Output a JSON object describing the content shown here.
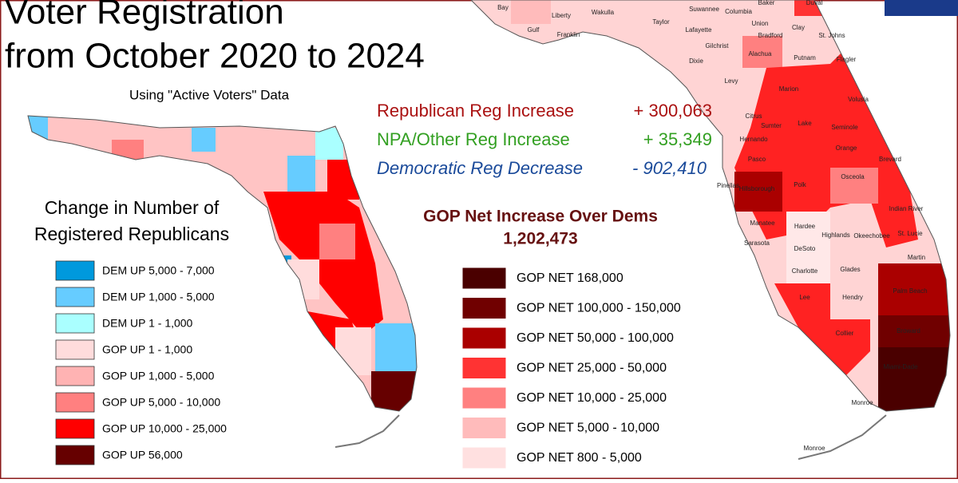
{
  "title_lines": [
    "Voter Registration",
    "from October 2020 to 2024"
  ],
  "subtitle": "Using \"Active Voters\" Data",
  "summary": [
    {
      "label": "Republican Reg Increase",
      "value": "+ 300,063",
      "color": "#aa1111"
    },
    {
      "label": "NPA/Other Reg Increase",
      "value": "+   35,349",
      "color": "#33a022"
    },
    {
      "label": "Democratic Reg Decrease",
      "value": "- 902,410",
      "color": "#1a4a9a"
    }
  ],
  "net": {
    "title": "GOP Net Increase Over Dems",
    "value": "1,202,473"
  },
  "left_legend": {
    "title_lines": [
      "Change in Number of",
      "Registered Republicans"
    ],
    "items": [
      {
        "label": "DEM UP 5,000 - 7,000",
        "color": "#0099dd"
      },
      {
        "label": "DEM UP 1,000 - 5,000",
        "color": "#66ccff"
      },
      {
        "label": "DEM UP 1 - 1,000",
        "color": "#aaffff"
      },
      {
        "label": "GOP UP 1 - 1,000",
        "color": "#ffdcdc"
      },
      {
        "label": "GOP UP 1,000 - 5,000",
        "color": "#ffb3b3"
      },
      {
        "label": "GOP UP 5,000 - 10,000",
        "color": "#ff8080"
      },
      {
        "label": "GOP UP 10,000 - 25,000",
        "color": "#ff0000"
      },
      {
        "label": "GOP UP 56,000",
        "color": "#660000"
      }
    ]
  },
  "right_legend": {
    "items": [
      {
        "label": "GOP NET 168,000",
        "color": "#4a0000"
      },
      {
        "label": "GOP NET 100,000 - 150,000",
        "color": "#700000"
      },
      {
        "label": "GOP NET 50,000 - 100,000",
        "color": "#aa0000"
      },
      {
        "label": "GOP NET 25,000 - 50,000",
        "color": "#ff3333"
      },
      {
        "label": "GOP NET 10,000 - 25,000",
        "color": "#ff8080"
      },
      {
        "label": "GOP NET 5,000 - 10,000",
        "color": "#ffbbbb"
      },
      {
        "label": "GOP NET 800 - 5,000",
        "color": "#ffe0e0"
      }
    ]
  },
  "county_labels": [
    "Bay",
    "Liberty",
    "Wakulla",
    "Gulf",
    "Franklin",
    "Taylor",
    "Lafayette",
    "Suwannee",
    "Columbia",
    "Union",
    "Bradford",
    "Baker",
    "Duval",
    "Clay",
    "St. Johns",
    "Dixie",
    "Gilchrist",
    "Alachua",
    "Putnam",
    "Flagler",
    "Levy",
    "Marion",
    "Volusia",
    "Citrus",
    "Sumter",
    "Lake",
    "Seminole",
    "Hernando",
    "Orange",
    "Pasco",
    "Brevard",
    "Pinellas",
    "Hillsborough",
    "Polk",
    "Osceola",
    "Indian River",
    "Manatee",
    "Hardee",
    "Okeechobee",
    "Highlands",
    "St. Lucie",
    "Sarasota",
    "DeSoto",
    "Martin",
    "Charlotte",
    "Glades",
    "Palm Beach",
    "Lee",
    "Hendry",
    "Broward",
    "Collier",
    "Miami-Dade",
    "Monroe",
    "Monroe"
  ]
}
